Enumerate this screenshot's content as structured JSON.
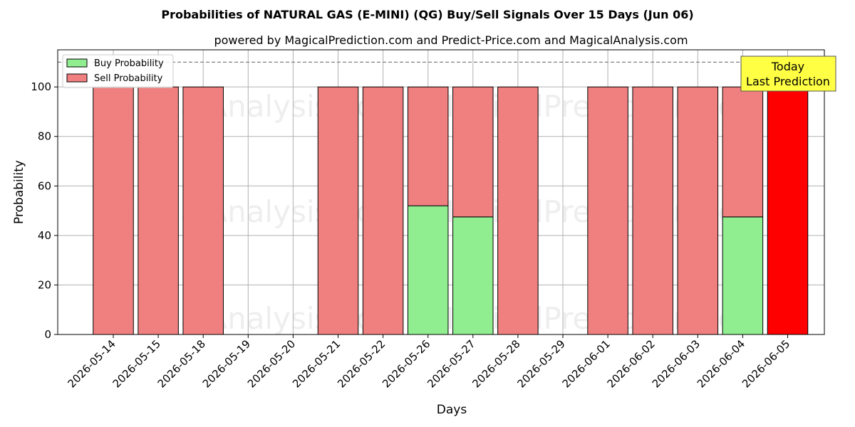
{
  "chart_data": {
    "type": "bar",
    "title": "Probabilities of NATURAL GAS (E-MINI) (QG) Buy/Sell Signals Over 15 Days (Jun 06)",
    "subtitle": "powered by MagicalPrediction.com and Predict-Price.com and MagicalAnalysis.com",
    "xlabel": "Days",
    "ylabel": "Probability",
    "ylim": [
      0,
      115
    ],
    "yticks": [
      0,
      20,
      40,
      60,
      80,
      100
    ],
    "reference_line": 110,
    "categories": [
      "2026-05-14",
      "2026-05-15",
      "2026-05-18",
      "2026-05-19",
      "2026-05-20",
      "2026-05-21",
      "2026-05-22",
      "2026-05-26",
      "2026-05-27",
      "2026-05-28",
      "2026-05-29",
      "2026-06-01",
      "2026-06-02",
      "2026-06-03",
      "2026-06-04",
      "2026-06-05"
    ],
    "series": [
      {
        "name": "Buy Probability",
        "color": "#90ee90",
        "values": [
          0,
          0,
          0,
          null,
          null,
          0,
          0,
          52,
          47.5,
          0,
          null,
          0,
          0,
          0,
          47.5,
          0
        ]
      },
      {
        "name": "Sell Probability",
        "color": "#f08080",
        "values": [
          100,
          100,
          100,
          null,
          null,
          100,
          100,
          48,
          52.5,
          100,
          null,
          100,
          100,
          100,
          52.5,
          100
        ]
      }
    ],
    "highlight": {
      "index": 15,
      "color": "#ff0000"
    },
    "annotation": [
      "Today",
      "Last Prediction"
    ],
    "watermarks": [
      "MagicalAnalysis.com",
      "MagicalPrediction.com"
    ],
    "legend_position": "top-left",
    "grid": true
  }
}
